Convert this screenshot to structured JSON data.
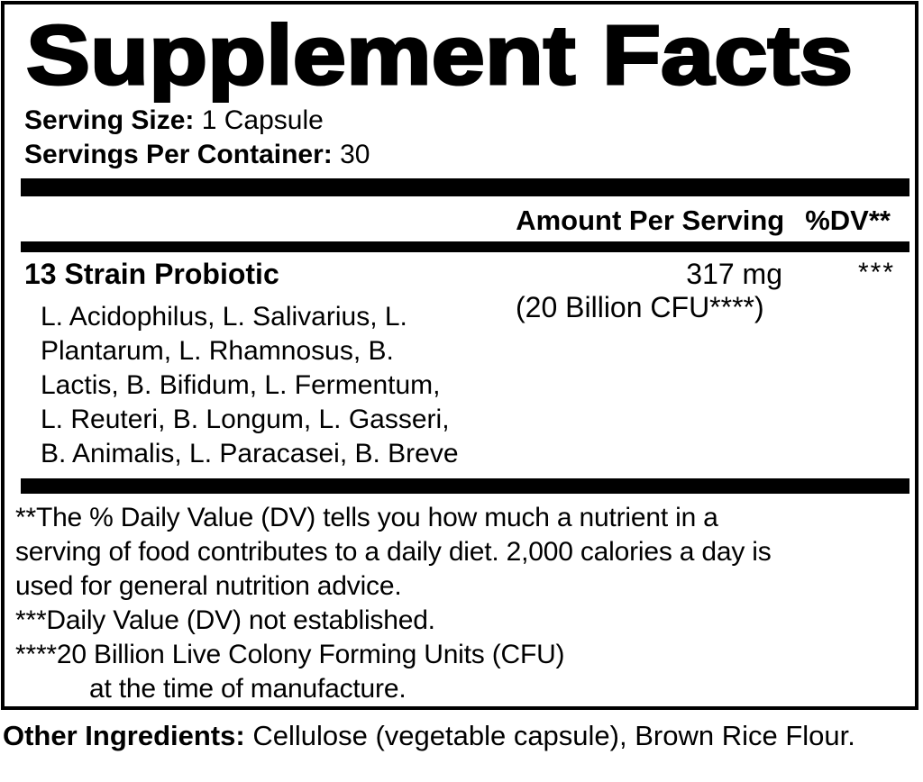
{
  "colors": {
    "ink": "#000000",
    "background": "#ffffff"
  },
  "panel": {
    "title": "Supplement Facts",
    "serving": {
      "size_label": "Serving Size:",
      "size_value": "1 Capsule",
      "per_container_label": "Servings Per Container:",
      "per_container_value": "30"
    },
    "column_header": {
      "amount": "Amount Per Serving",
      "dv": "%DV**"
    },
    "ingredient": {
      "name": "13 Strain Probiotic",
      "amount": "317 mg",
      "dv": "***",
      "cfu_note": "(20 Billion CFU****)",
      "strain_lines": [
        "L. Acidophilus, L. Salivarius, L.",
        "Plantarum, L. Rhamnosus, B.",
        "Lactis, B. Bifidum, L. Fermentum,",
        "L. Reuteri, B. Longum, L. Gasseri,",
        "B. Animalis, L. Paracasei, B. Breve"
      ]
    },
    "footnote_lines": [
      "**The % Daily Value (DV) tells you how much a nutrient in a",
      "serving of food contributes to a daily diet. 2,000 calories a day is",
      "used for general nutrition advice.",
      "***Daily Value (DV) not established.",
      "****20 Billion Live Colony Forming Units (CFU)",
      "at the time of manufacture."
    ]
  },
  "other_ingredients": {
    "label": "Other Ingredients:",
    "value": " Cellulose (vegetable capsule), Brown Rice Flour."
  }
}
